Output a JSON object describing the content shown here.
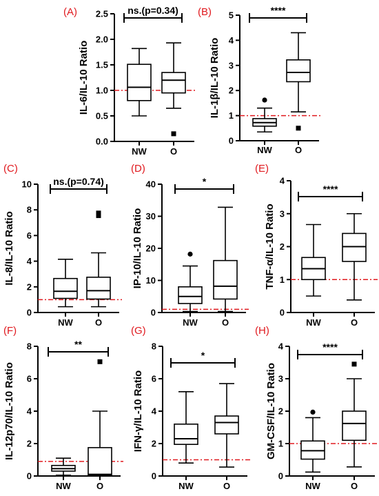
{
  "chart_data": [
    {
      "type": "box",
      "panel": "(A)",
      "ylabel": "IL-6/IL-10 Ratio",
      "ylim": [
        0,
        2.5
      ],
      "yticks": [
        0.0,
        0.5,
        1.0,
        1.5,
        2.0,
        2.5
      ],
      "ytick_labels": [
        "0.0",
        "0.5",
        "1.0",
        "1.5",
        "2.0",
        "2.5"
      ],
      "reference_line": 1.0,
      "categories": [
        "NW",
        "O"
      ],
      "boxes": [
        {
          "whisker_low": 0.5,
          "q1": 0.8,
          "median": 1.06,
          "q3": 1.51,
          "whisker_high": 1.82,
          "outliers": []
        },
        {
          "whisker_low": 0.65,
          "q1": 0.95,
          "median": 1.2,
          "q3": 1.35,
          "whisker_high": 1.93,
          "outliers": [
            {
              "y": 0.15,
              "shape": "square"
            }
          ]
        }
      ],
      "significance": "ns.(p=0.34)"
    },
    {
      "type": "box",
      "panel": "(B)",
      "ylabel": "IL-1β/IL-10 Ratio",
      "ylim": [
        0,
        5
      ],
      "yticks": [
        0,
        1,
        2,
        3,
        4,
        5
      ],
      "ytick_labels": [
        "0",
        "1",
        "2",
        "3",
        "4",
        "5"
      ],
      "reference_line": 1.0,
      "categories": [
        "NW",
        "O"
      ],
      "boxes": [
        {
          "whisker_low": 0.35,
          "q1": 0.58,
          "median": 0.72,
          "q3": 0.88,
          "whisker_high": 1.3,
          "outliers": [
            {
              "y": 1.62,
              "shape": "circle"
            }
          ]
        },
        {
          "whisker_low": 1.15,
          "q1": 2.35,
          "median": 2.72,
          "q3": 3.22,
          "whisker_high": 4.3,
          "outliers": [
            {
              "y": 0.5,
              "shape": "square"
            }
          ]
        }
      ],
      "significance": "****"
    },
    {
      "type": "box",
      "panel": "(C)",
      "ylabel": "IL-8/IL-10 Ratio",
      "ylim": [
        0,
        10
      ],
      "yticks": [
        0,
        2,
        4,
        6,
        8,
        10
      ],
      "ytick_labels": [
        "0",
        "2",
        "4",
        "6",
        "8",
        "10"
      ],
      "reference_line": 1.0,
      "categories": [
        "NW",
        "O"
      ],
      "boxes": [
        {
          "whisker_low": 0.45,
          "q1": 1.1,
          "median": 1.65,
          "q3": 2.65,
          "whisker_high": 4.15,
          "outliers": []
        },
        {
          "whisker_low": 0.45,
          "q1": 1.05,
          "median": 1.7,
          "q3": 2.75,
          "whisker_high": 4.65,
          "outliers": [
            {
              "y": 7.55,
              "shape": "square"
            },
            {
              "y": 7.75,
              "shape": "square"
            }
          ]
        }
      ],
      "significance": "ns.(p=0.74)"
    },
    {
      "type": "box",
      "panel": "(D)",
      "ylabel": "IP-10/IL-10 Ratio",
      "ylim": [
        0,
        40
      ],
      "yticks": [
        0,
        10,
        20,
        30,
        40
      ],
      "ytick_labels": [
        "0",
        "10",
        "20",
        "30",
        "40"
      ],
      "reference_line": 1.0,
      "categories": [
        "NW",
        "O"
      ],
      "boxes": [
        {
          "whisker_low": 0.3,
          "q1": 2.8,
          "median": 5.0,
          "q3": 8.0,
          "whisker_high": 14.5,
          "outliers": [
            {
              "y": 18.2,
              "shape": "circle"
            }
          ]
        },
        {
          "whisker_low": 0.3,
          "q1": 4.2,
          "median": 8.2,
          "q3": 16.2,
          "whisker_high": 32.8,
          "outliers": []
        }
      ],
      "significance": "*"
    },
    {
      "type": "box",
      "panel": "(E)",
      "ylabel": "TNF-α/IL-10 Ratio",
      "ylim": [
        0,
        4
      ],
      "yticks": [
        0,
        1,
        2,
        3,
        4
      ],
      "ytick_labels": [
        "0",
        "1",
        "2",
        "3",
        "4"
      ],
      "reference_line": 1.0,
      "categories": [
        "NW",
        "O"
      ],
      "boxes": [
        {
          "whisker_low": 0.5,
          "q1": 1.0,
          "median": 1.33,
          "q3": 1.67,
          "whisker_high": 2.67,
          "outliers": []
        },
        {
          "whisker_low": 0.38,
          "q1": 1.55,
          "median": 2.0,
          "q3": 2.4,
          "whisker_high": 3.0,
          "outliers": []
        }
      ],
      "significance": "****"
    },
    {
      "type": "box",
      "panel": "(F)",
      "ylabel": "IL-12p70/IL-10 Ratio",
      "ylim": [
        0,
        8
      ],
      "yticks": [
        0,
        2,
        4,
        6,
        8
      ],
      "ytick_labels": [
        "0",
        "2",
        "4",
        "6",
        "8"
      ],
      "reference_line": 0.9,
      "categories": [
        "NW",
        "O"
      ],
      "boxes": [
        {
          "whisker_low": 0.05,
          "q1": 0.3,
          "median": 0.45,
          "q3": 0.65,
          "whisker_high": 1.1,
          "outliers": []
        },
        {
          "whisker_low": 0.0,
          "q1": 0.05,
          "median": 0.1,
          "q3": 1.75,
          "whisker_high": 4.0,
          "outliers": [
            {
              "y": 7.05,
              "shape": "square"
            }
          ]
        }
      ],
      "significance": "**"
    },
    {
      "type": "box",
      "panel": "(G)",
      "ylabel": "IFN-γ/IL-10 Ratio",
      "ylim": [
        0,
        8
      ],
      "yticks": [
        0,
        2,
        4,
        6,
        8
      ],
      "ytick_labels": [
        "0",
        "2",
        "4",
        "6",
        "8"
      ],
      "reference_line": 1.0,
      "categories": [
        "NW",
        "O"
      ],
      "boxes": [
        {
          "whisker_low": 0.8,
          "q1": 1.95,
          "median": 2.3,
          "q3": 3.2,
          "whisker_high": 5.2,
          "outliers": []
        },
        {
          "whisker_low": 0.55,
          "q1": 2.6,
          "median": 3.3,
          "q3": 3.7,
          "whisker_high": 5.7,
          "outliers": []
        }
      ],
      "significance": "*"
    },
    {
      "type": "box",
      "panel": "(H)",
      "ylabel": "GM-CSF/IL-10 Ratio",
      "ylim": [
        0,
        4
      ],
      "yticks": [
        0,
        1,
        2,
        3,
        4
      ],
      "ytick_labels": [
        "0",
        "1",
        "2",
        "3",
        "4"
      ],
      "reference_line": 1.0,
      "categories": [
        "NW",
        "O"
      ],
      "boxes": [
        {
          "whisker_low": 0.12,
          "q1": 0.52,
          "median": 0.78,
          "q3": 1.08,
          "whisker_high": 1.8,
          "outliers": [
            {
              "y": 1.97,
              "shape": "circle"
            }
          ]
        },
        {
          "whisker_low": 0.28,
          "q1": 1.1,
          "median": 1.62,
          "q3": 2.0,
          "whisker_high": 3.0,
          "outliers": [
            {
              "y": 3.45,
              "shape": "square"
            }
          ]
        }
      ],
      "significance": "****"
    }
  ],
  "colors": {
    "panel_letter": "#e0191e",
    "reference_line": "#e0191e",
    "box": "#000000"
  }
}
